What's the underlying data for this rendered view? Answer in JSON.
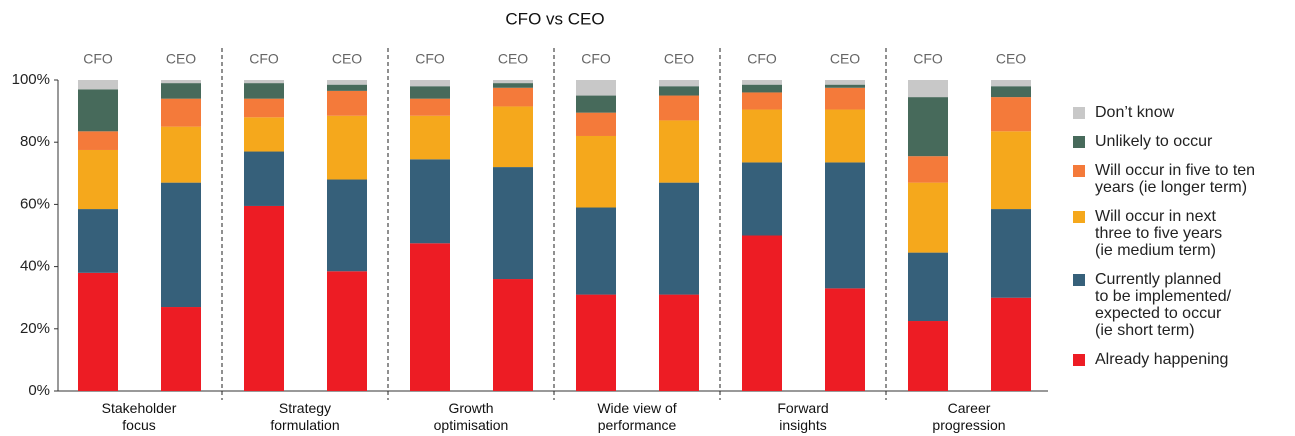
{
  "chart_data": {
    "type": "stacked_bar",
    "title": "CFO vs CEO",
    "groups": [
      "Stakeholder\nfocus",
      "Strategy\nformulation",
      "Growth\noptimisation",
      "Wide view of\nperformance",
      "Forward\ninsights",
      "Career\nprogression"
    ],
    "categories": [
      "CFO",
      "CEO",
      "CFO",
      "CEO",
      "CFO",
      "CEO",
      "CFO",
      "CEO",
      "CFO",
      "CEO",
      "CFO",
      "CEO"
    ],
    "series": [
      {
        "name": "Already happening",
        "color": "#ed1c24",
        "values": [
          38,
          27,
          59.5,
          38.5,
          47.5,
          36,
          31,
          31,
          50,
          33,
          22.5,
          30
        ]
      },
      {
        "name": "Currently planned\nto be implemented/\nexpected to occur\n(ie short term)",
        "color": "#36607a",
        "values": [
          20.5,
          40,
          17.5,
          29.5,
          27,
          36,
          28,
          36,
          23.5,
          40.5,
          22,
          28.5
        ]
      },
      {
        "name": "Will occur in next\nthree to five years\n(ie medium term)",
        "color": "#f5a81c",
        "values": [
          19,
          18,
          11,
          20.5,
          14,
          19.5,
          23,
          20,
          17,
          17,
          22.5,
          25
        ]
      },
      {
        "name": "Will occur in five to ten\nyears (ie longer term)",
        "color": "#f47a3a",
        "values": [
          6,
          9,
          6,
          8,
          5.5,
          6,
          7.5,
          8,
          5.5,
          7,
          8.5,
          11
        ]
      },
      {
        "name": "Unlikely to occur",
        "color": "#476a5b",
        "values": [
          13.5,
          5,
          5,
          2,
          4,
          1.5,
          5.5,
          3,
          2.5,
          1,
          19,
          3.5
        ]
      },
      {
        "name": "Don’t know",
        "color": "#c8c8c8",
        "values": [
          3,
          1,
          1,
          1.5,
          2,
          1,
          5,
          2,
          1.5,
          1.5,
          5.5,
          2
        ]
      }
    ],
    "ylim": [
      0,
      100
    ],
    "yticks": [
      {
        "value": 0,
        "label": "0%"
      },
      {
        "value": 20,
        "label": "20%"
      },
      {
        "value": 40,
        "label": "40%"
      },
      {
        "value": 60,
        "label": "60%"
      },
      {
        "value": 80,
        "label": "80%"
      },
      {
        "value": 100,
        "label": "100%"
      }
    ]
  }
}
